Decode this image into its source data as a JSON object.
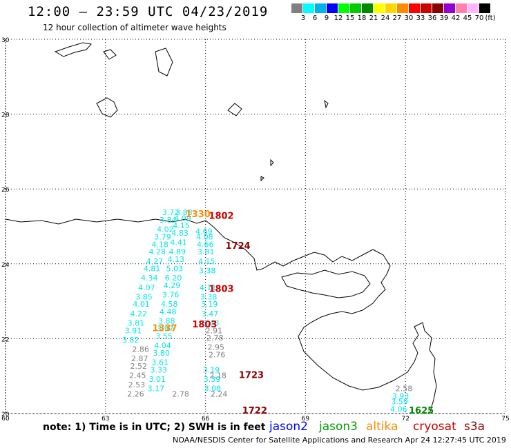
{
  "header": {
    "title": "12:00 – 23:59 UTC 04/23/2019",
    "subtitle": "12 hour collection of altimeter wave heights"
  },
  "colorbar": {
    "unit": "(ft)",
    "colors": [
      "#808080",
      "#00ffff",
      "#00b2ee",
      "#0000ff",
      "#00ff00",
      "#00cd00",
      "#008b00",
      "#ffff00",
      "#ffd700",
      "#ff8c00",
      "#ff0000",
      "#cd0000",
      "#8b0000",
      "#9400d3",
      "#ff82ab",
      "#ffb6ff",
      "#000000"
    ],
    "ticks": [
      "3",
      "6",
      "9",
      "12",
      "15",
      "18",
      "21",
      "24",
      "27",
      "30",
      "33",
      "36",
      "39",
      "42",
      "45",
      "70"
    ]
  },
  "axes": {
    "lon_ticks": [
      "60",
      "63",
      "66",
      "69",
      "72",
      "75"
    ],
    "lat_ticks": [
      "30",
      "28",
      "26",
      "24",
      "22",
      "20"
    ]
  },
  "tracks": [
    {
      "color": "#00e5ee",
      "values": [
        [
          "3.72",
          25.3
        ],
        [
          "3.84",
          25.1
        ],
        [
          "4.02",
          24.85
        ],
        [
          "3.79",
          24.65
        ],
        [
          "4.18",
          24.45
        ],
        [
          "4.28",
          24.25
        ],
        [
          "4.27",
          24.0
        ],
        [
          "4.81",
          23.8
        ],
        [
          "4.34",
          23.55
        ],
        [
          "4.07",
          23.3
        ],
        [
          "3.85",
          23.05
        ],
        [
          "4.01",
          22.85
        ],
        [
          "4.22",
          22.6
        ],
        [
          "3.81",
          22.35
        ],
        [
          "3.91",
          22.15
        ],
        [
          "3.82",
          21.9
        ]
      ],
      "lon0": 64.7,
      "dlon": -0.08
    },
    {
      "color": "#00e5ee",
      "values": [
        [
          "3.88",
          25.3
        ],
        [
          "4.09",
          25.15
        ],
        [
          "4.15",
          24.95
        ],
        [
          "4.83",
          24.75
        ],
        [
          "4.41",
          24.5
        ],
        [
          "4.89",
          24.25
        ],
        [
          "4.13",
          24.05
        ],
        [
          "5.03",
          23.8
        ],
        [
          "6.20",
          23.55
        ],
        [
          "4.29",
          23.35
        ],
        [
          "3.76",
          23.1
        ],
        [
          "4.58",
          22.85
        ],
        [
          "4.48",
          22.65
        ],
        [
          "3.88",
          22.4
        ],
        [
          "3.97",
          22.2
        ],
        [
          "3.55",
          22.0
        ],
        [
          "4.04",
          21.75
        ],
        [
          "3.80",
          21.55
        ],
        [
          "3.61",
          21.3
        ],
        [
          "3.33",
          21.1
        ],
        [
          "3.01",
          20.85
        ],
        [
          "3.17",
          20.6
        ]
      ],
      "lon0": 65.1,
      "dlon": -0.04
    },
    {
      "color": "#00e5ee",
      "values": [
        [
          "4.69",
          24.8
        ],
        [
          "4.08",
          24.65
        ],
        [
          "4.66",
          24.45
        ],
        [
          "3.81",
          24.25
        ],
        [
          "4.15",
          24.0
        ],
        [
          "3.38",
          23.75
        ],
        [
          "4.11",
          23.3
        ],
        [
          "3.38",
          23.05
        ],
        [
          "3.19",
          22.85
        ],
        [
          "3.47",
          22.6
        ],
        [
          "3.48",
          22.35
        ],
        [
          "3.19",
          21.1
        ],
        [
          "3.39",
          20.85
        ],
        [
          "3.08",
          20.6
        ]
      ],
      "lon0": 65.7,
      "dlon": 0.02
    },
    {
      "color": "#808080",
      "values": [
        [
          "2.86",
          21.65
        ],
        [
          "2.87",
          21.4
        ],
        [
          "2.52",
          21.2
        ],
        [
          "2.45",
          20.95
        ],
        [
          "2.53",
          20.7
        ],
        [
          "2.26",
          20.45
        ]
      ],
      "lon0": 63.8,
      "dlon": -0.03
    },
    {
      "color": "#808080",
      "values": [
        [
          "2.91",
          22.15
        ],
        [
          "2.78",
          21.95
        ],
        [
          "2.95",
          21.7
        ],
        [
          "2.76",
          21.5
        ],
        [
          "2.18",
          20.95
        ],
        [
          "2.24",
          20.45
        ]
      ],
      "lon0": 66.0,
      "dlon": 0.03
    },
    {
      "color": "#808080",
      "values": [
        [
          "2.78",
          20.45
        ]
      ],
      "lon0": 65.0,
      "dlon": 0
    },
    {
      "color": "#808080",
      "values": [
        [
          "2.58",
          20.6
        ]
      ],
      "lon0": 71.7,
      "dlon": 0
    },
    {
      "color": "#00e5ee",
      "values": [
        [
          "3.93",
          20.4
        ],
        [
          "3.59",
          20.25
        ],
        [
          "4.06",
          20.05
        ]
      ],
      "lon0": 71.6,
      "dlon": -0.03
    }
  ],
  "labels": [
    {
      "text": "1802",
      "color": "#cc0000",
      "lon": 66.1,
      "lat": 25.2
    },
    {
      "text": "1330",
      "color": "#ff8c00",
      "lon": 65.4,
      "lat": 25.25
    },
    {
      "text": "1724",
      "color": "#8b0000",
      "lon": 66.6,
      "lat": 24.4
    },
    {
      "text": "1803",
      "color": "#cc0000",
      "lon": 66.1,
      "lat": 23.25
    },
    {
      "text": "1803",
      "color": "#cc0000",
      "lon": 65.6,
      "lat": 22.3
    },
    {
      "text": "1337",
      "color": "#ff8c00",
      "lon": 64.4,
      "lat": 22.2
    },
    {
      "text": "1723",
      "color": "#8b0000",
      "lon": 67.0,
      "lat": 20.95
    },
    {
      "text": "1722",
      "color": "#8b0000",
      "lon": 67.1,
      "lat": 20.0
    },
    {
      "text": "1625",
      "color": "#008b00",
      "lon": 72.1,
      "lat": 20.0
    }
  ],
  "footer": {
    "note": "note: 1) Time is in UTC; 2) SWH is in feet",
    "credit": "NOAA/NESDIS Center for Satellite Applications and Research   Apr 24 12:27:45 UTC 2019",
    "missions": [
      {
        "name": "jason2",
        "color": "#0000ff"
      },
      {
        "name": "jason3",
        "color": "#00a000"
      },
      {
        "name": "altika",
        "color": "#ff8c00"
      },
      {
        "name": "cryosat",
        "color": "#cc0000"
      },
      {
        "name": "s3a",
        "color": "#8b0000"
      }
    ]
  }
}
